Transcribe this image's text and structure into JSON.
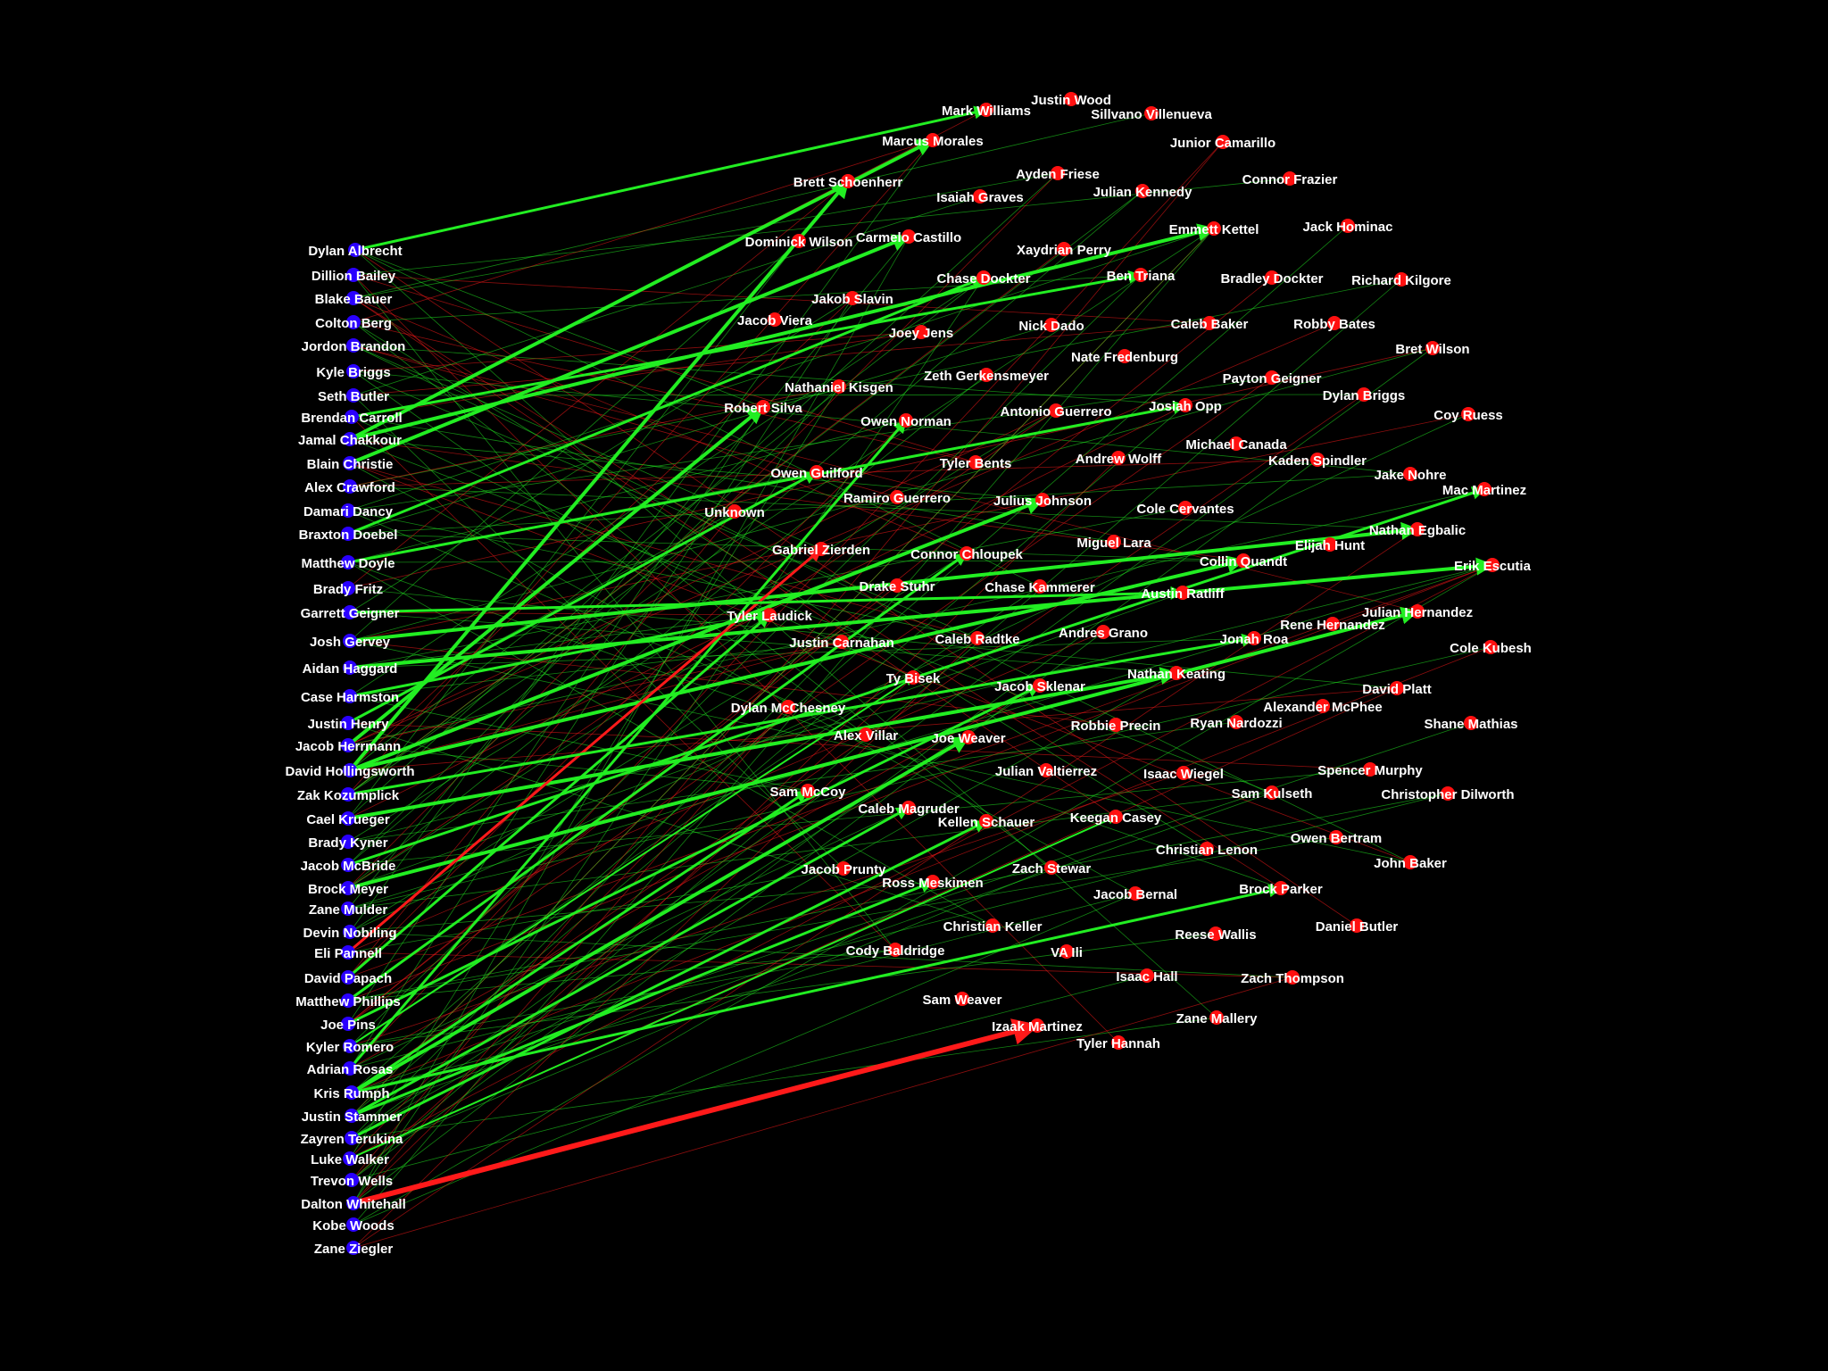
{
  "colors": {
    "background": "#000000",
    "left_node": "#2a00ff",
    "right_node": "#ff1010",
    "green_edge": "#22ee22",
    "red_edge": "#ff1a1a",
    "label": "#ffffff"
  },
  "left_nodes": [
    "Dylan Albrecht",
    "Dillion Bailey",
    "Blake Bauer",
    "Colton Berg",
    "Jordon Brandon",
    "Kyle Briggs",
    "Seth Butler",
    "Brendan Carroll",
    "Jamal Chakkour",
    "Blain Christie",
    "Alex Crawford",
    "Damari Dancy",
    "Braxton Doebel",
    "Matthew Doyle",
    "Brady Fritz",
    "Garrett Geigner",
    "Josh Gervey",
    "Aidan Haggard",
    "Case Harmston",
    "Justin Henry",
    "Jacob Herrmann",
    "David Hollingsworth",
    "Zak Kozumplick",
    "Cael Krueger",
    "Brady Kyner",
    "Jacob McBride",
    "Brock Meyer",
    "Zane Mulder",
    "Devin Nobiling",
    "Eli Pannell",
    "David Papach",
    "Matthew Phillips",
    "Joe Pins",
    "Kyler Romero",
    "Adrian Rosas",
    "Kris Rumph",
    "Justin Stammer",
    "Zayren Terukina",
    "Luke Walker",
    "Trevon Wells",
    "Dalton Whitehall",
    "Kobe Woods",
    "Zane Ziegler"
  ],
  "right_nodes": [
    "Mark Williams",
    "Justin Wood",
    "Sillvano Villenueva",
    "Marcus Morales",
    "Junior Camarillo",
    "Brett Schoenherr",
    "Ayden Friese",
    "Connor Frazier",
    "Isaiah Graves",
    "Julian Kennedy",
    "Jack Hominac",
    "Emmett Kettel",
    "Dominick Wilson",
    "Carmelo Castillo",
    "Xaydrian Perry",
    "Ben Triana",
    "Chase Dockter",
    "Bradley Dockter",
    "Richard Kilgore",
    "Jakob Slavin",
    "Jacob Viera",
    "Caleb Baker",
    "Robby Bates",
    "Nick Dado",
    "Joey Jens",
    "Bret Wilson",
    "Nate Fredenburg",
    "Zeth Gerkensmeyer",
    "Payton Geigner",
    "Nathaniel Kisgen",
    "Dylan Briggs",
    "Robert Silva",
    "Josiah Opp",
    "Antonio Guerrero",
    "Coy Ruess",
    "Owen Norman",
    "Michael Canada",
    "Kaden Spindler",
    "Andrew Wolff",
    "Tyler Bents",
    "Owen Guilford",
    "Jake Nohre",
    "Mac Martinez",
    "Ramiro Guerrero",
    "Julius Johnson",
    "Unknown",
    "Cole Cervantes",
    "Nathan Egbalic",
    "Gabriel Zierden",
    "Miguel Lara",
    "Elijah Hunt",
    "Connor Chloupek",
    "Collin Quandt",
    "Erik Escutia",
    "Drake Stuhr",
    "Chase Kammerer",
    "Austin Ratliff",
    "Tyler Laudick",
    "Julian Hernandez",
    "Rene Hernandez",
    "Justin Carnahan",
    "Caleb Radtke",
    "Andres Grano",
    "Jonah Roa",
    "Cole Kubesh",
    "Ty Bisek",
    "Nathan Keating",
    "Jacob Sklenar",
    "David Platt",
    "Dylan McChesney",
    "Alexander McPhee",
    "Shane Mathias",
    "Robbie Precin",
    "Ryan Nardozzi",
    "Alex Villar",
    "Joe Weaver",
    "Julian Valtierrez",
    "Isaac Wiegel",
    "Spencer Murphy",
    "Sam McCoy",
    "Sam Kulseth",
    "Christopher Dilworth",
    "Caleb Magruder",
    "Keegan Casey",
    "Kellen Schauer",
    "Owen Bertram",
    "Christian Lenon",
    "John Baker",
    "Jacob Prunty",
    "Zach Stewar",
    "Ross Meskimen",
    "Jacob Bernal",
    "Brock Parker",
    "Christian Keller",
    "Reese Wallis",
    "Daniel Butler",
    "Cody Baldridge",
    "VA Ili",
    "Isaac Hall",
    "Zach Thompson",
    "Sam Weaver",
    "Izaak Martinez",
    "Zane Mallery",
    "Tyler Hannah"
  ]
}
